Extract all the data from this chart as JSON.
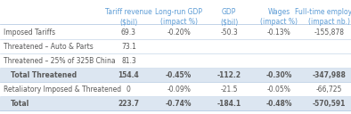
{
  "col_headers": [
    "Tariff revenue\n($bil)",
    "Long-run GDP\n(impact %)",
    "GDP\n($bil)",
    "Wages\n(impact %)",
    "Full-time employees\n(impact nb.)"
  ],
  "row_labels": [
    "Imposed Tariffs",
    "Threatened – Auto & Parts",
    "Threatened – 25% of 325B China",
    "  Total Threatened",
    "Retaliatory Imposed & Threatened",
    "  Total"
  ],
  "row_indented": [
    false,
    false,
    false,
    true,
    false,
    true
  ],
  "data": [
    [
      "69.3",
      "-0.20%",
      "-50.3",
      "-0.13%",
      "-155,878"
    ],
    [
      "73.1",
      "",
      "",
      "",
      ""
    ],
    [
      "81.3",
      "",
      "",
      "",
      ""
    ],
    [
      "154.4",
      "-0.45%",
      "-112.2",
      "-0.30%",
      "-347,988"
    ],
    [
      "0",
      "-0.09%",
      "-21.5",
      "-0.05%",
      "-66,725"
    ],
    [
      "223.7",
      "-0.74%",
      "-184.1",
      "-0.48%",
      "-570,591"
    ]
  ],
  "bold_rows": [
    3,
    5
  ],
  "header_color": "#5b9bd5",
  "separator_color": "#b8cce4",
  "bold_row_bg": "#dce6f1",
  "text_color": "#595959",
  "header_text_color": "#5b9bd5",
  "bg_color": "#ffffff",
  "font_size": 5.5,
  "header_font_size": 5.5
}
